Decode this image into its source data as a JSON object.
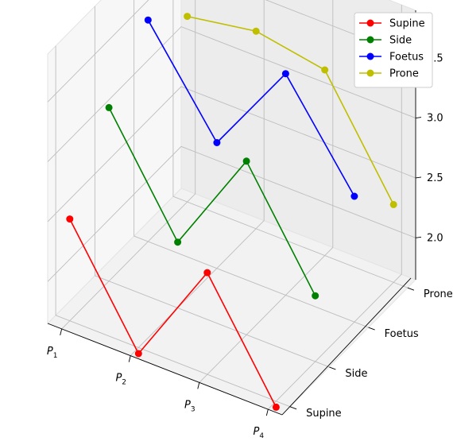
{
  "chart_data": {
    "type": "line",
    "projection": "3d",
    "x_categories": [
      "P1",
      "P2",
      "P3",
      "P4"
    ],
    "y_categories": [
      "Supine",
      "Side",
      "Foetus",
      "Prone"
    ],
    "zlim": [
      1.65,
      3.9
    ],
    "z_ticks": [
      2.0,
      2.5,
      3.0,
      3.5
    ],
    "z_tick_labels": [
      "2.0",
      "2.5",
      "3.0",
      "3.5"
    ],
    "grid": true,
    "legend_position": "top-right",
    "series": [
      {
        "name": "Supine",
        "color": "#ff0000",
        "values": [
          2.5,
          1.6,
          2.5,
          1.6
        ]
      },
      {
        "name": "Side",
        "color": "#008000",
        "values": [
          3.1,
          2.2,
          3.1,
          2.2
        ]
      },
      {
        "name": "Foetus",
        "color": "#0000ff",
        "values": [
          3.5,
          2.7,
          3.5,
          2.7
        ]
      },
      {
        "name": "Prone",
        "color": "#bfbf00",
        "values": [
          3.2,
          3.3,
          3.2,
          2.3
        ]
      }
    ]
  }
}
